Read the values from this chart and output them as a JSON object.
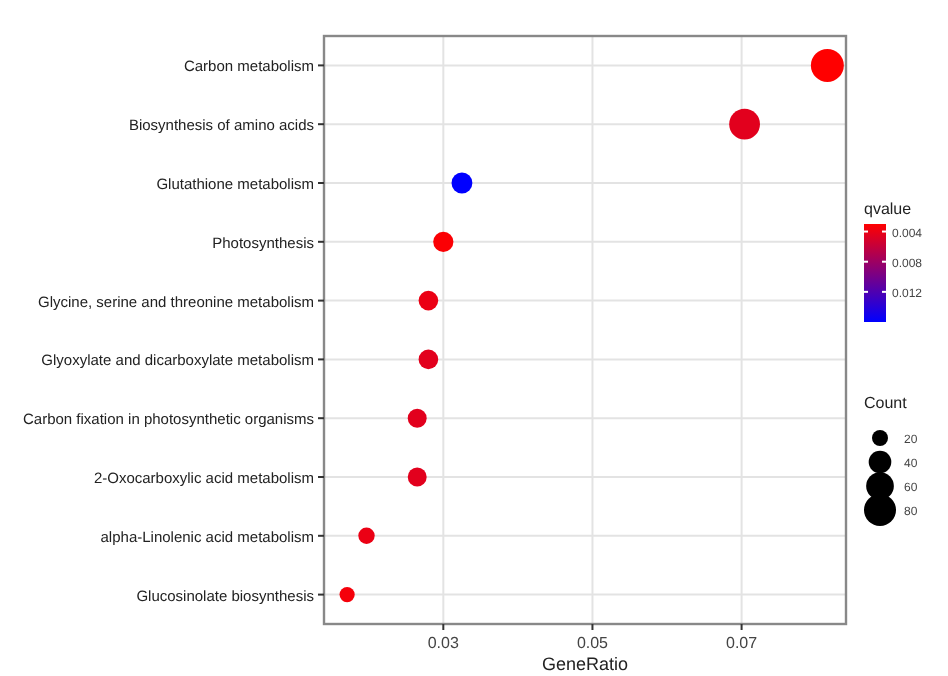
{
  "chart_data": {
    "type": "bubble",
    "orientation": "horizontal",
    "xlabel": "GeneRatio",
    "legend_title": "Count",
    "clabel": "qvalue",
    "categories": [
      "Carbon metabolism",
      "Biosynthesis of amino acids",
      "Glutathione metabolism",
      "Photosynthesis",
      "Glycine, serine and threonine metabolism",
      "Glyoxylate and dicarboxylate metabolism",
      "Carbon fixation in photosynthetic organisms",
      "2-Oxocarboxylic acid metabolism",
      "alpha-Linolenic acid metabolism",
      "Glucosinolate biosynthesis"
    ],
    "values": [
      0.0815,
      0.0704,
      0.0325,
      0.03,
      0.028,
      0.028,
      0.0265,
      0.0265,
      0.0197,
      0.0171
    ],
    "sizes": [
      85,
      74,
      34,
      32,
      30,
      30,
      28,
      28,
      21,
      18
    ],
    "size_legend": [
      20,
      40,
      60,
      80
    ],
    "cvalues": [
      0.003,
      0.0045,
      0.016,
      0.0032,
      0.004,
      0.0045,
      0.0045,
      0.0045,
      0.004,
      0.0035
    ],
    "clim": [
      0.003,
      0.016
    ],
    "cticks": [
      0.004,
      0.008,
      0.012
    ],
    "xlim": [
      0.014,
      0.084
    ],
    "xticks": [
      0.03,
      0.05,
      0.07
    ],
    "grid": true
  }
}
